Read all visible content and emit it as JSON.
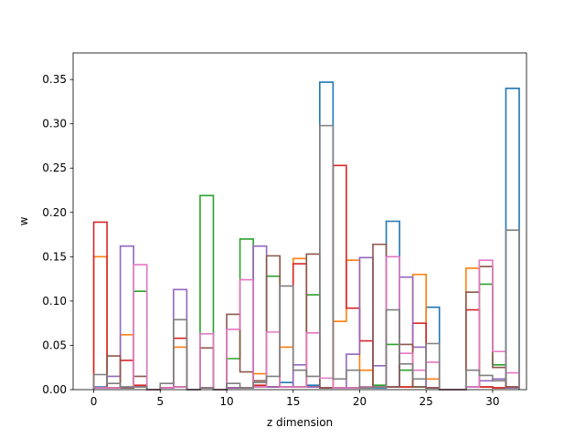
{
  "chart_data": {
    "type": "step",
    "title": "",
    "xlabel": "z dimension",
    "ylabel": "w",
    "xlim": [
      -1.55,
      32.55
    ],
    "ylim": [
      0,
      0.38
    ],
    "xticks": [
      0,
      5,
      10,
      15,
      20,
      25,
      30
    ],
    "xtick_labels": [
      "0",
      "5",
      "10",
      "15",
      "20",
      "25",
      "30"
    ],
    "yticks": [
      0.0,
      0.05,
      0.1,
      0.15,
      0.2,
      0.25,
      0.3,
      0.35
    ],
    "ytick_labels": [
      "0.00",
      "0.05",
      "0.10",
      "0.15",
      "0.20",
      "0.25",
      "0.30",
      "0.35"
    ],
    "grid": false,
    "bin_edges_start": 0,
    "bin_width": 1,
    "series": [
      {
        "color": "#1f77b4",
        "values": [
          0.003,
          0.002,
          0.002,
          0.003,
          0.0,
          0.002,
          0.003,
          0.0,
          0.002,
          0.0,
          0.002,
          0.002,
          0.003,
          0.003,
          0.008,
          0.003,
          0.005,
          0.347,
          0.002,
          0.002,
          0.002,
          0.002,
          0.19,
          0.003,
          0.003,
          0.093,
          0.0,
          0.0,
          0.003,
          0.003,
          0.002,
          0.34
        ]
      },
      {
        "color": "#ff7f0e",
        "values": [
          0.15,
          0.002,
          0.062,
          0.003,
          0.0,
          0.002,
          0.048,
          0.0,
          0.002,
          0.0,
          0.002,
          0.002,
          0.018,
          0.003,
          0.048,
          0.148,
          0.003,
          0.002,
          0.077,
          0.146,
          0.022,
          0.003,
          0.003,
          0.003,
          0.13,
          0.012,
          0.0,
          0.0,
          0.137,
          0.003,
          0.002,
          0.003
        ]
      },
      {
        "color": "#2ca02c",
        "values": [
          0.002,
          0.002,
          0.003,
          0.111,
          0.0,
          0.002,
          0.003,
          0.0,
          0.219,
          0.0,
          0.035,
          0.17,
          0.003,
          0.128,
          0.003,
          0.003,
          0.107,
          0.002,
          0.002,
          0.002,
          0.003,
          0.005,
          0.051,
          0.022,
          0.003,
          0.002,
          0.0,
          0.0,
          0.003,
          0.119,
          0.028,
          0.002
        ]
      },
      {
        "color": "#d62728",
        "values": [
          0.189,
          0.002,
          0.033,
          0.005,
          0.0,
          0.002,
          0.058,
          0.0,
          0.002,
          0.0,
          0.002,
          0.002,
          0.005,
          0.003,
          0.003,
          0.142,
          0.003,
          0.002,
          0.253,
          0.092,
          0.055,
          0.003,
          0.003,
          0.003,
          0.075,
          0.002,
          0.0,
          0.0,
          0.09,
          0.003,
          0.002,
          0.003
        ]
      },
      {
        "color": "#9467bd",
        "values": [
          0.002,
          0.015,
          0.162,
          0.003,
          0.0,
          0.002,
          0.113,
          0.0,
          0.002,
          0.0,
          0.002,
          0.002,
          0.162,
          0.003,
          0.003,
          0.028,
          0.003,
          0.002,
          0.002,
          0.04,
          0.149,
          0.027,
          0.003,
          0.127,
          0.048,
          0.002,
          0.0,
          0.0,
          0.003,
          0.01,
          0.012,
          0.002
        ]
      },
      {
        "color": "#8c564b",
        "values": [
          0.002,
          0.038,
          0.002,
          0.015,
          0.0,
          0.002,
          0.003,
          0.0,
          0.047,
          0.0,
          0.085,
          0.02,
          0.01,
          0.151,
          0.003,
          0.003,
          0.153,
          0.002,
          0.002,
          0.002,
          0.003,
          0.164,
          0.003,
          0.051,
          0.003,
          0.002,
          0.0,
          0.0,
          0.11,
          0.139,
          0.025,
          0.003
        ]
      },
      {
        "color": "#e377c2",
        "values": [
          0.002,
          0.002,
          0.003,
          0.141,
          0.0,
          0.002,
          0.003,
          0.0,
          0.063,
          0.0,
          0.068,
          0.124,
          0.003,
          0.065,
          0.003,
          0.003,
          0.064,
          0.013,
          0.002,
          0.002,
          0.003,
          0.003,
          0.15,
          0.041,
          0.022,
          0.031,
          0.0,
          0.0,
          0.003,
          0.146,
          0.043,
          0.019
        ]
      },
      {
        "color": "#7f7f7f",
        "values": [
          0.017,
          0.007,
          0.003,
          0.003,
          0.0,
          0.007,
          0.079,
          0.0,
          0.002,
          0.0,
          0.007,
          0.002,
          0.008,
          0.015,
          0.117,
          0.022,
          0.015,
          0.298,
          0.012,
          0.022,
          0.002,
          0.003,
          0.09,
          0.029,
          0.012,
          0.052,
          0.0,
          0.0,
          0.022,
          0.016,
          0.01,
          0.18
        ]
      }
    ]
  }
}
